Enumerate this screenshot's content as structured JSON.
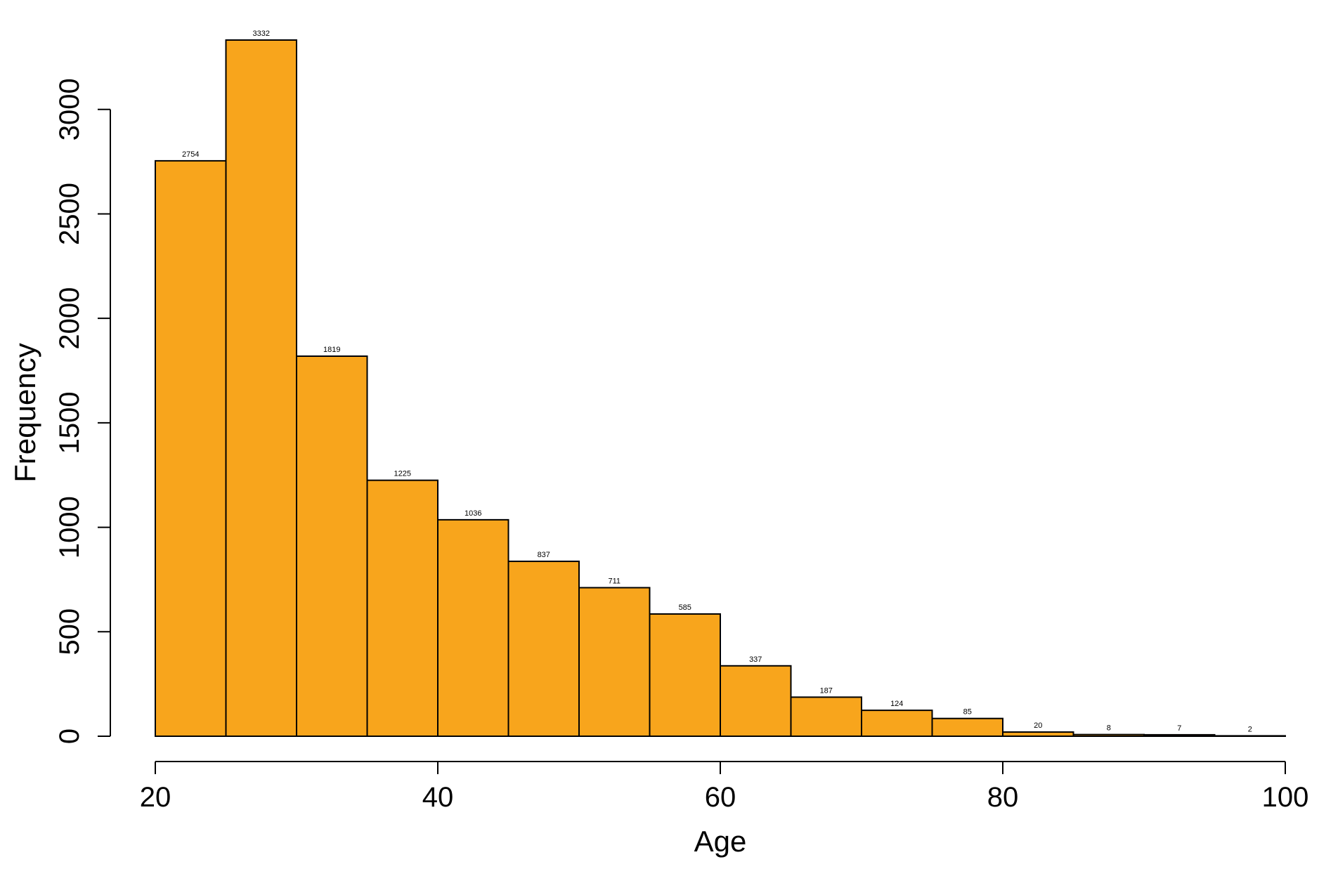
{
  "chart_data": {
    "type": "bar",
    "bin_edges": [
      20,
      25,
      30,
      35,
      40,
      45,
      50,
      55,
      60,
      65,
      70,
      75,
      80,
      85,
      90,
      95,
      100
    ],
    "values": [
      2754,
      3332,
      1819,
      1225,
      1036,
      837,
      711,
      585,
      337,
      187,
      124,
      85,
      20,
      8,
      7,
      2
    ],
    "data_labels": [
      "2754",
      "3332",
      "1819",
      "1225",
      "1036",
      "837",
      "711",
      "585",
      "337",
      "187",
      "124",
      "85",
      "20",
      "8",
      "7",
      "2"
    ],
    "xlabel": "Age",
    "ylabel": "Frequency",
    "xlim": [
      20,
      100
    ],
    "ylim": [
      0,
      3332
    ],
    "x_ticks": [
      20,
      40,
      60,
      80,
      100
    ],
    "x_tick_labels": [
      "20",
      "40",
      "60",
      "80",
      "100"
    ],
    "y_ticks": [
      0,
      500,
      1000,
      1500,
      2000,
      2500,
      3000
    ],
    "y_tick_labels": [
      "0",
      "500",
      "1000",
      "1500",
      "2000",
      "2500",
      "3000"
    ],
    "bar_color": "#F8A51C",
    "grid": false,
    "legend": "none"
  }
}
